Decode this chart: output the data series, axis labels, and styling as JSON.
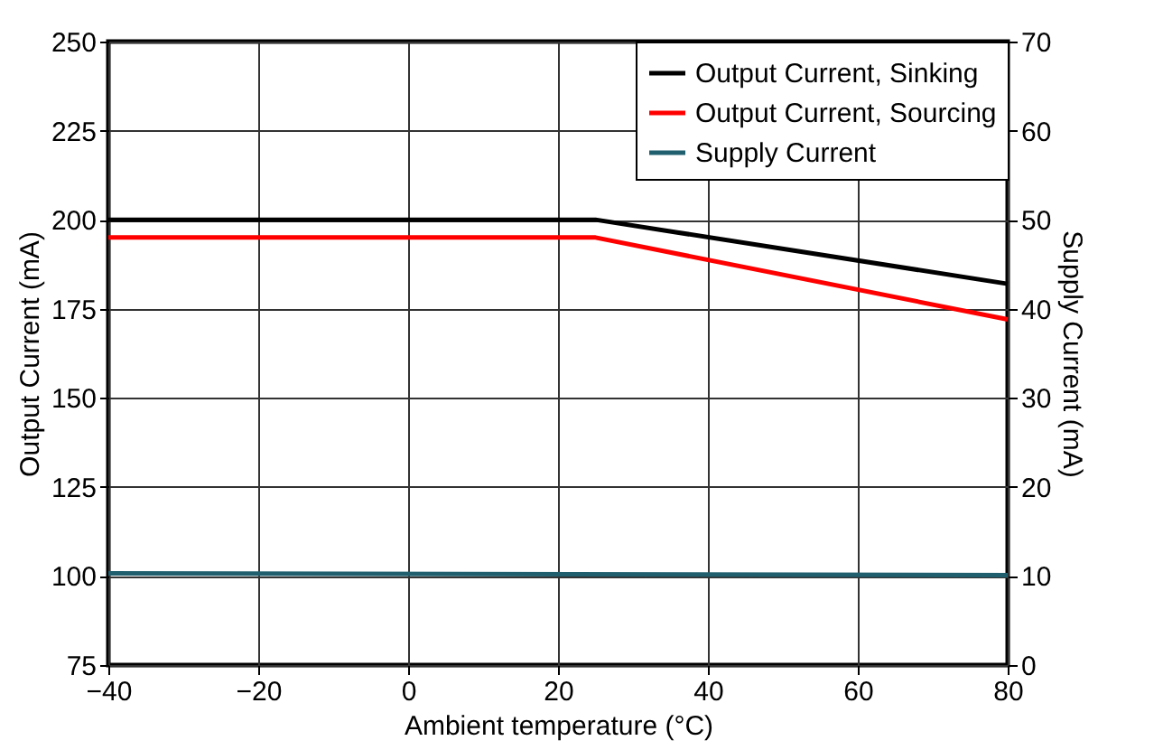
{
  "chart_data": {
    "type": "line",
    "xlabel": "Ambient temperature (°C)",
    "ylabel": "Output Current (mA)",
    "y2label": "Supply Current (mA)",
    "series": [
      {
        "name": "Output Current, Sinking",
        "color": "#000000",
        "x": [
          -40,
          25,
          80
        ],
        "values": [
          200,
          200,
          182
        ]
      },
      {
        "name": "Output Current, Sourcing",
        "color": "#ff0000",
        "x": [
          -40,
          25,
          80
        ],
        "values": [
          195,
          195,
          172
        ]
      },
      {
        "name": "Supply Current",
        "color": "#1f5f6e",
        "x": [
          -40,
          80
        ],
        "values": [
          10.3,
          10.1
        ],
        "axis": "y2"
      }
    ],
    "xlim": [
      -40,
      80
    ],
    "xticks": [
      -40,
      -20,
      0,
      20,
      40,
      60,
      80
    ],
    "ylim": [
      75,
      250
    ],
    "yticks": [
      75,
      100,
      125,
      150,
      175,
      200,
      225,
      250
    ],
    "y2lim": [
      0,
      70
    ],
    "y2ticks": [
      0,
      10,
      20,
      30,
      40,
      50,
      60,
      70
    ],
    "grid": true,
    "legend": "top right",
    "line_style": "solid"
  }
}
